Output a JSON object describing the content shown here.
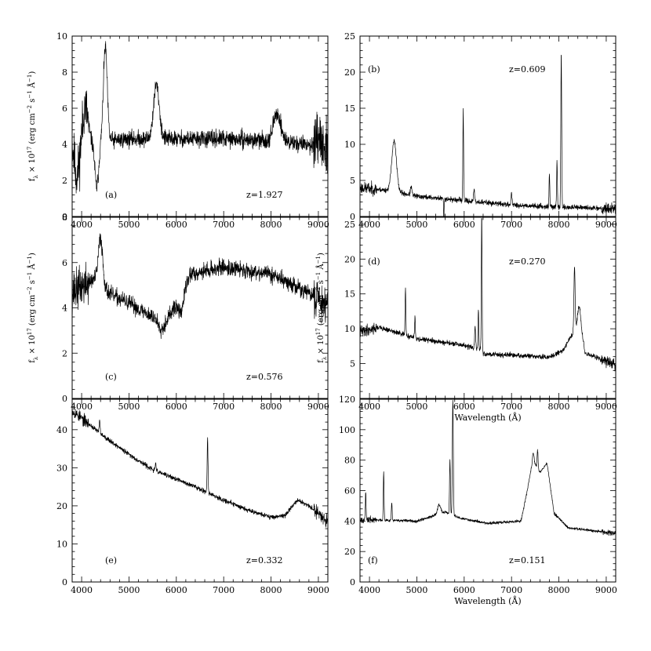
{
  "figure": {
    "ylabel_html": "f<tspan baseline-shift='sub' font-size='7'>λ</tspan> × 10<tspan baseline-shift='super' font-size='7'>17</tspan> (erg cm<tspan baseline-shift='super' font-size='7'>−2</tspan> s<tspan baseline-shift='super' font-size='7'>−1</tspan> Å<tspan baseline-shift='super' font-size='7'>−1</tspan>)",
    "xlabel": "Wavelength (Å)",
    "colors": {
      "line": "#000000",
      "frame": "#000000",
      "background": "#ffffff"
    }
  },
  "chart_data": [
    {
      "type": "line",
      "panel": "(a)",
      "label": "(a)",
      "redshift": "z=1.927",
      "xlim": [
        3800,
        9200
      ],
      "ylim": [
        0,
        10
      ],
      "xticks": [
        4000,
        5000,
        6000,
        7000,
        8000,
        9000
      ],
      "yticks": [
        0,
        2,
        4,
        6,
        8,
        10
      ],
      "show_xlabel": false,
      "show_ylabel": true,
      "continuum": [
        [
          3800,
          4.6
        ],
        [
          4200,
          4.1
        ],
        [
          5000,
          4.3
        ],
        [
          6000,
          4.3
        ],
        [
          7000,
          4.3
        ],
        [
          8000,
          4.2
        ],
        [
          9200,
          3.9
        ]
      ],
      "features": [
        [
          4500,
          5.2,
          40
        ],
        [
          4080,
          1.8,
          60
        ],
        [
          5580,
          3.0,
          60
        ],
        [
          8130,
          1.5,
          80
        ],
        [
          4320,
          -2.5,
          40
        ],
        [
          3900,
          -2.2,
          60
        ]
      ],
      "noise": 0.45,
      "noise_edge": 1.4,
      "seed": 11
    },
    {
      "type": "line",
      "panel": "(b)",
      "label": "(b)",
      "redshift": "z=0.609",
      "xlim": [
        3800,
        9200
      ],
      "ylim": [
        0,
        25
      ],
      "xticks": [
        4000,
        5000,
        6000,
        7000,
        8000,
        9000
      ],
      "yticks": [
        0,
        5,
        10,
        15,
        20,
        25
      ],
      "show_xlabel": false,
      "show_ylabel": false,
      "continuum": [
        [
          3800,
          4.0
        ],
        [
          4400,
          3.6
        ],
        [
          5000,
          2.8
        ],
        [
          6000,
          2.2
        ],
        [
          7000,
          1.6
        ],
        [
          8000,
          1.3
        ],
        [
          9200,
          1.1
        ]
      ],
      "features": [
        [
          4520,
          7.0,
          50
        ],
        [
          5980,
          12.5,
          8
        ],
        [
          6210,
          1.5,
          12
        ],
        [
          7000,
          1.8,
          10
        ],
        [
          7800,
          4.5,
          8
        ],
        [
          7960,
          6.5,
          8
        ],
        [
          8050,
          21.5,
          9
        ],
        [
          4880,
          1.2,
          15
        ],
        [
          5570,
          -3.5,
          5
        ]
      ],
      "noise": 0.35,
      "noise_edge": 0.8,
      "seed": 23
    },
    {
      "type": "line",
      "panel": "(c)",
      "label": "(c)",
      "redshift": "z=0.576",
      "xlim": [
        3800,
        9200
      ],
      "ylim": [
        0,
        8
      ],
      "xticks": [
        4000,
        5000,
        6000,
        7000,
        8000,
        9000
      ],
      "yticks": [
        0,
        2,
        4,
        6,
        8
      ],
      "show_xlabel": false,
      "show_ylabel": true,
      "continuum": [
        [
          3800,
          4.7
        ],
        [
          4300,
          5.3
        ],
        [
          4600,
          4.6
        ],
        [
          5000,
          4.2
        ],
        [
          5500,
          3.6
        ],
        [
          5900,
          3.8
        ],
        [
          6300,
          5.5
        ],
        [
          7000,
          5.8
        ],
        [
          8000,
          5.5
        ],
        [
          9200,
          4.2
        ]
      ],
      "features": [
        [
          4400,
          2.0,
          45
        ],
        [
          5700,
          -0.6,
          80
        ],
        [
          6100,
          -0.8,
          60
        ]
      ],
      "noise": 0.35,
      "noise_edge": 0.9,
      "seed": 37
    },
    {
      "type": "line",
      "panel": "(d)",
      "label": "(d)",
      "redshift": "z=0.270",
      "xlim": [
        3800,
        9200
      ],
      "ylim": [
        0,
        26
      ],
      "xticks": [
        4000,
        5000,
        6000,
        7000,
        8000,
        9000
      ],
      "yticks": [
        5,
        10,
        15,
        20,
        25
      ],
      "show_xlabel": true,
      "show_ylabel": true,
      "continuum": [
        [
          3800,
          9.6
        ],
        [
          4200,
          10.2
        ],
        [
          5000,
          8.6
        ],
        [
          6000,
          7.6
        ],
        [
          6350,
          7.0
        ],
        [
          6420,
          6.4
        ],
        [
          7000,
          6.2
        ],
        [
          7800,
          5.9
        ],
        [
          8100,
          7.0
        ],
        [
          8300,
          9.5
        ],
        [
          8450,
          11.5
        ],
        [
          8550,
          6.5
        ],
        [
          9200,
          4.8
        ]
      ],
      "features": [
        [
          4760,
          6.5,
          8
        ],
        [
          4960,
          3.0,
          8
        ],
        [
          6230,
          3.0,
          10
        ],
        [
          6300,
          5.5,
          8
        ],
        [
          6370,
          19.5,
          8
        ],
        [
          8330,
          9.0,
          12
        ],
        [
          8420,
          2.0,
          25
        ]
      ],
      "noise": 0.35,
      "noise_edge": 0.8,
      "seed": 41
    },
    {
      "type": "line",
      "panel": "(e)",
      "label": "(e)",
      "redshift": "z=0.332",
      "xlim": [
        3800,
        9200
      ],
      "ylim": [
        0,
        48
      ],
      "xticks": [
        4000,
        5000,
        6000,
        7000,
        8000,
        9000
      ],
      "yticks": [
        0,
        10,
        20,
        30,
        40
      ],
      "show_xlabel": false,
      "show_ylabel": false,
      "continuum": [
        [
          3800,
          45.0
        ],
        [
          4500,
          38.0
        ],
        [
          5000,
          33.5
        ],
        [
          5500,
          29.5
        ],
        [
          6000,
          27.0
        ],
        [
          6500,
          24.5
        ],
        [
          7000,
          21.5
        ],
        [
          7500,
          19.0
        ],
        [
          8000,
          17.0
        ],
        [
          8300,
          17.5
        ],
        [
          8550,
          21.5
        ],
        [
          8800,
          20.0
        ],
        [
          9200,
          16.0
        ]
      ],
      "features": [
        [
          6660,
          14.0,
          9
        ],
        [
          4380,
          3.0,
          10
        ],
        [
          5560,
          2.0,
          10
        ]
      ],
      "noise": 0.6,
      "noise_edge": 1.5,
      "seed": 53
    },
    {
      "type": "line",
      "panel": "(f)",
      "label": "(f)",
      "redshift": "z=0.151",
      "xlim": [
        3800,
        9200
      ],
      "ylim": [
        0,
        120
      ],
      "xticks": [
        4000,
        5000,
        6000,
        7000,
        8000,
        9000
      ],
      "yticks": [
        0,
        20,
        40,
        60,
        80,
        100,
        120
      ],
      "show_xlabel": true,
      "show_ylabel": false,
      "continuum": [
        [
          3800,
          41.0
        ],
        [
          5000,
          40.0
        ],
        [
          5400,
          44.0
        ],
        [
          5600,
          46.0
        ],
        [
          5900,
          42.0
        ],
        [
          6500,
          38.5
        ],
        [
          7200,
          40.0
        ],
        [
          7300,
          55.0
        ],
        [
          7450,
          80.0
        ],
        [
          7600,
          72.0
        ],
        [
          7750,
          78.0
        ],
        [
          7900,
          45.0
        ],
        [
          8200,
          35.5
        ],
        [
          9200,
          32.0
        ]
      ],
      "features": [
        [
          3920,
          17.0,
          8
        ],
        [
          4300,
          32.0,
          8
        ],
        [
          4470,
          12.0,
          8
        ],
        [
          5470,
          6.0,
          35
        ],
        [
          5700,
          36.0,
          9
        ],
        [
          5760,
          76.0,
          10
        ],
        [
          7550,
          12.0,
          10
        ],
        [
          7460,
          5.0,
          15
        ]
      ],
      "noise": 0.9,
      "noise_edge": 2.0,
      "seed": 67
    }
  ]
}
